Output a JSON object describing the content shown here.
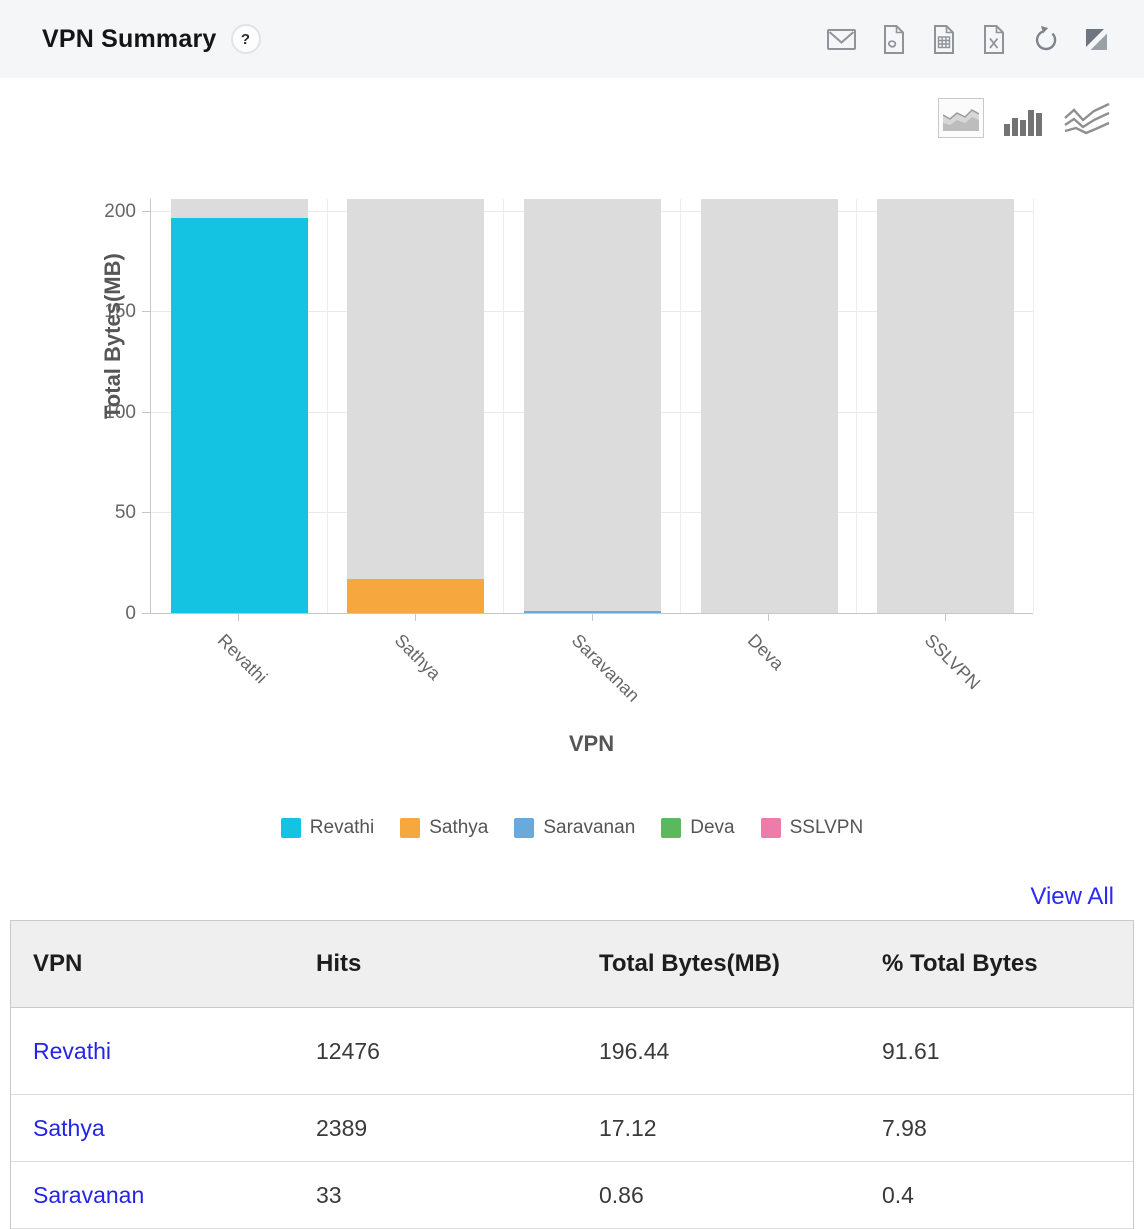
{
  "header": {
    "title": "VPN Summary",
    "help_label": "?",
    "toolbar_icons": [
      "email",
      "export-pdf",
      "export-csv",
      "export-excel",
      "refresh",
      "collapse-widget"
    ]
  },
  "chart_toolbar": {
    "types": [
      "area-chart",
      "bar-chart",
      "line-chart"
    ],
    "active": "bar-chart"
  },
  "chart_data": {
    "type": "bar",
    "stacked_track": true,
    "title": "",
    "xlabel": "VPN",
    "ylabel": "Total Bytes(MB)",
    "categories": [
      "Revathi",
      "Sathya",
      "Saravanan",
      "Deva",
      "SSLVPN"
    ],
    "values": [
      196.44,
      17.12,
      0.86,
      0,
      0
    ],
    "series_colors": [
      "#14c3e2",
      "#f6a83f",
      "#6aa9dc",
      "#5cb85c",
      "#ee7cab"
    ],
    "track_color": "#dcdcdc",
    "ylim": [
      0,
      206.25
    ],
    "yticks": [
      0,
      50,
      100,
      150,
      200
    ],
    "grid": true,
    "legend_position": "bottom"
  },
  "table": {
    "view_all_label": "View All",
    "columns": [
      "VPN",
      "Hits",
      "Total Bytes(MB)",
      "% Total Bytes"
    ],
    "rows": [
      [
        "Revathi",
        "12476",
        "196.44",
        "91.61"
      ],
      [
        "Sathya",
        "2389",
        "17.12",
        "7.98"
      ],
      [
        "Saravanan",
        "33",
        "0.86",
        "0.4"
      ]
    ],
    "link_color": "#2424e6",
    "view_all_color": "#2a2af0"
  }
}
